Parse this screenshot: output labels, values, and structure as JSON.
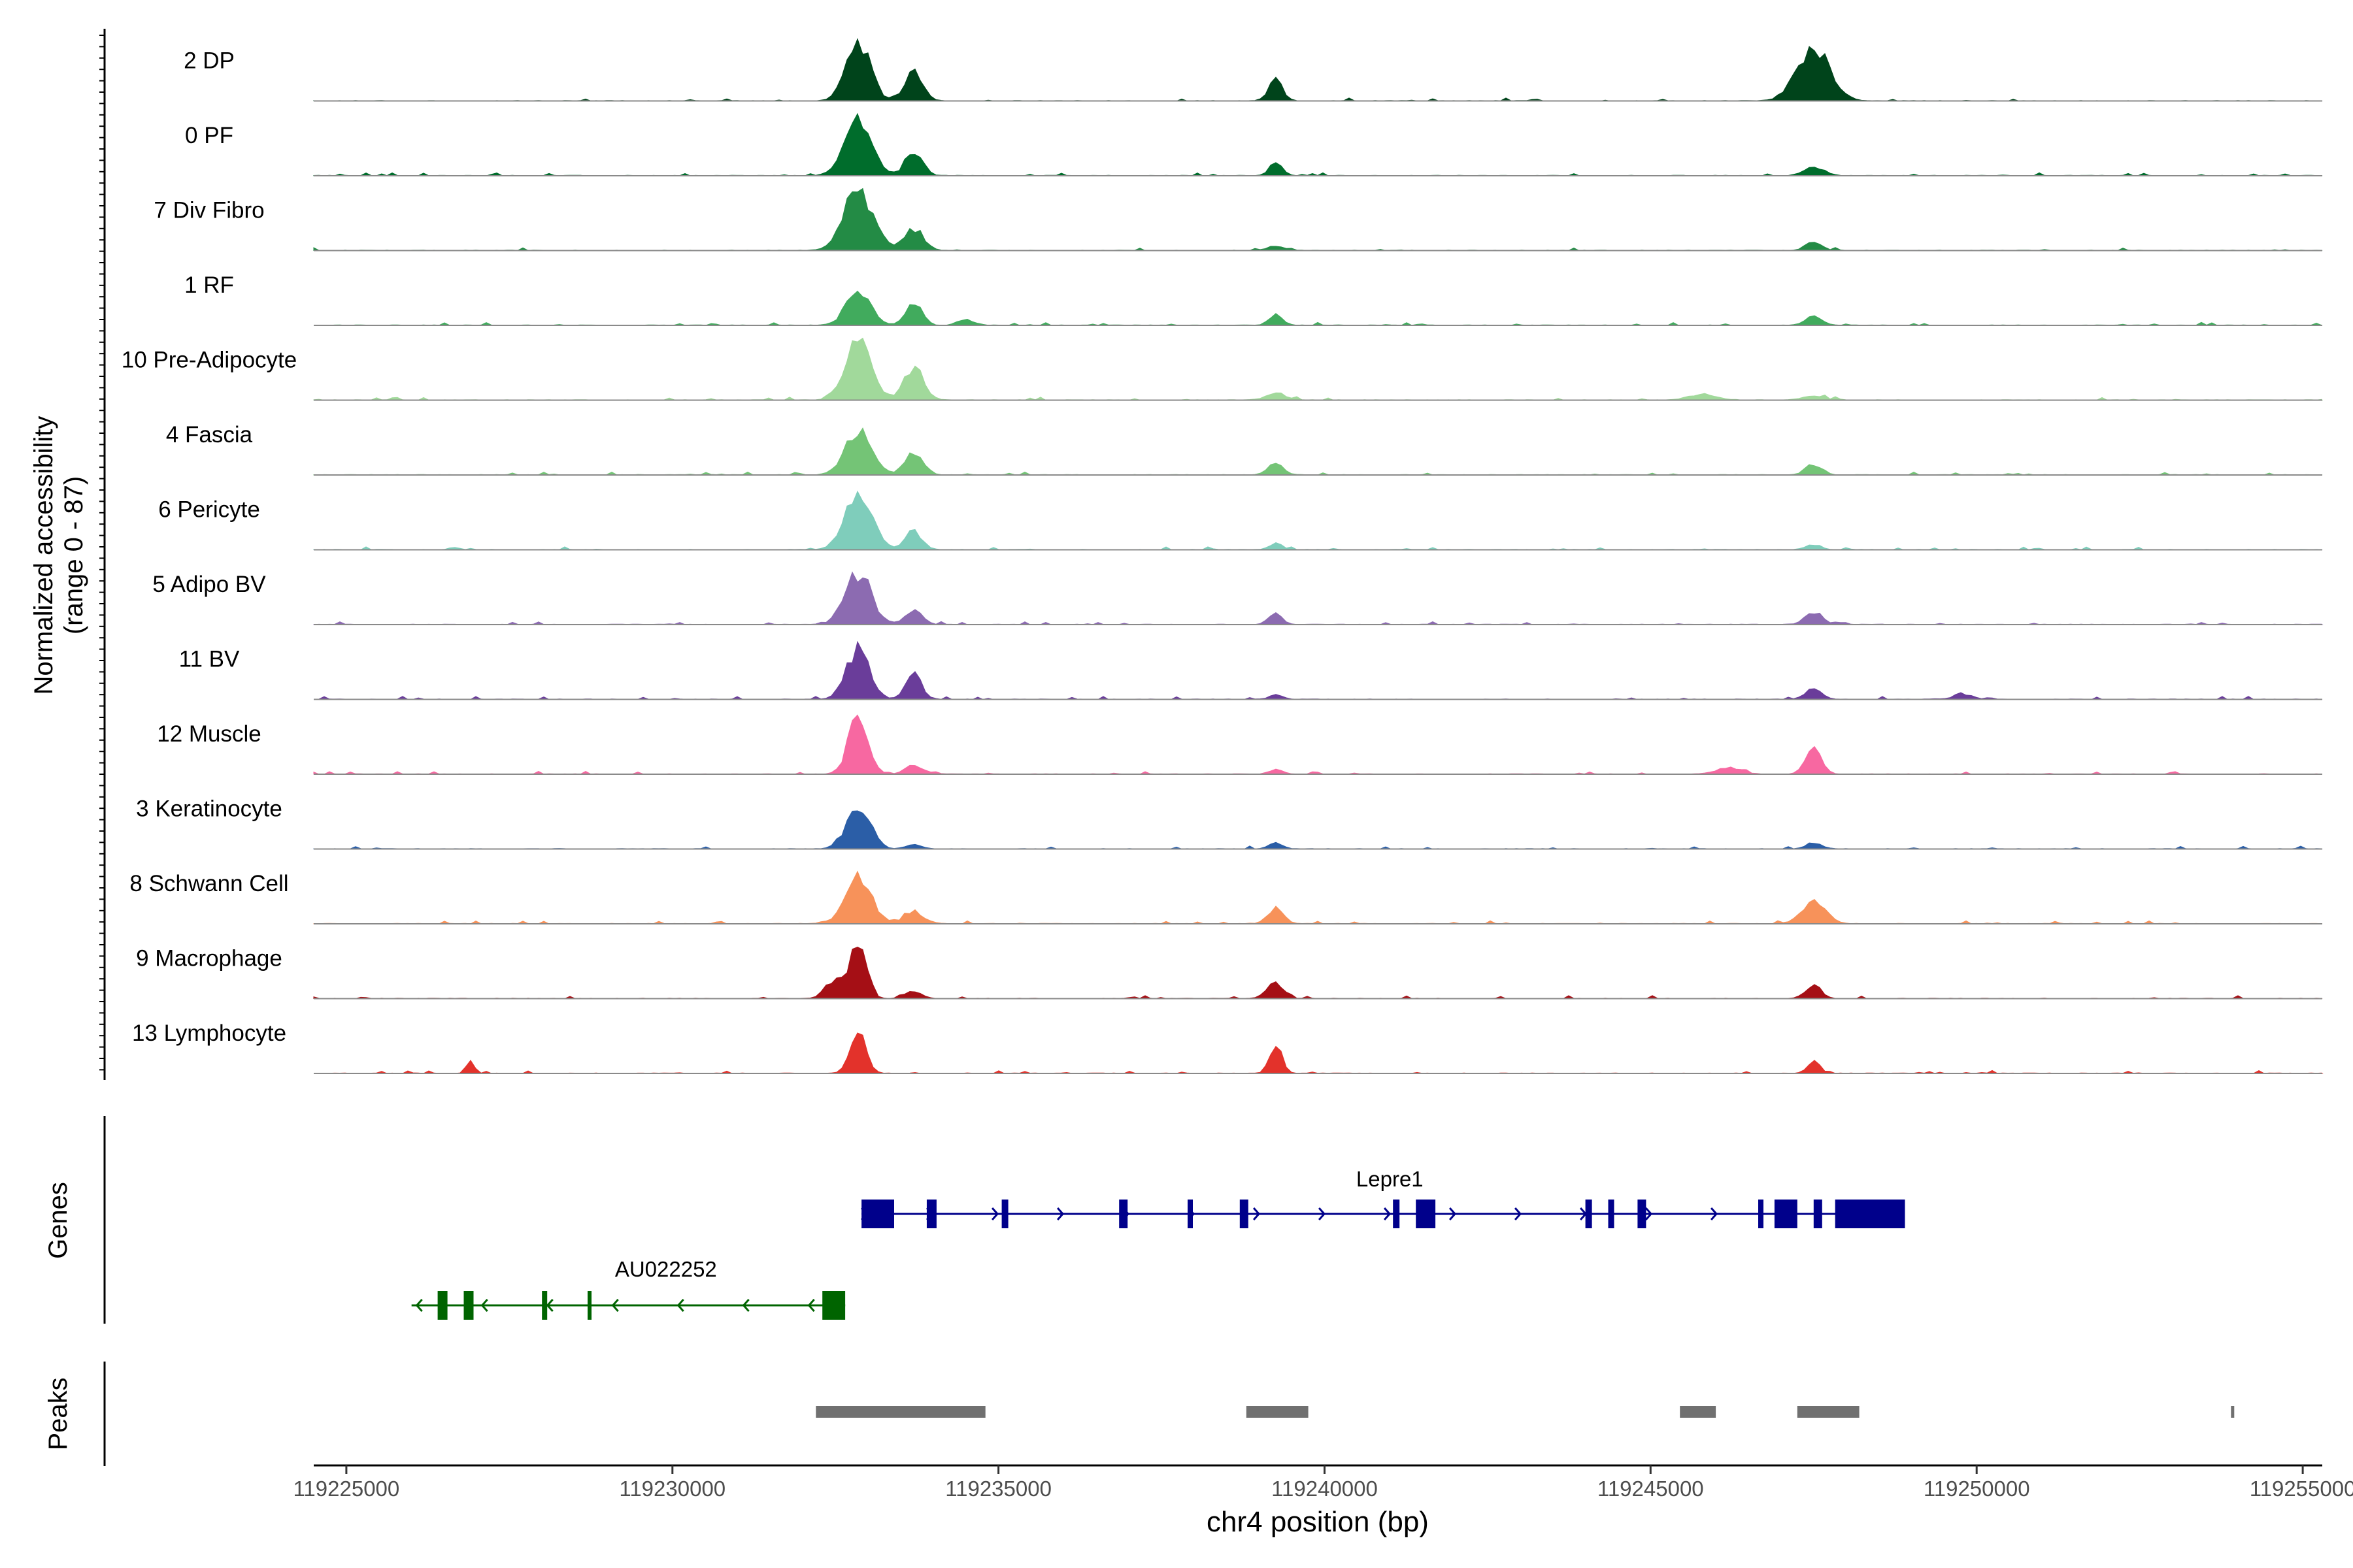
{
  "chart_data": {
    "type": "area",
    "y_axis_title_line1": "Normalized accessibility",
    "y_axis_title_line2": "(range 0 - 87)",
    "y_range": [
      0,
      87
    ],
    "x_axis_title": "chr4 position (bp)",
    "x_range": [
      119224500,
      119255300
    ],
    "x_ticks": [
      {
        "value": 119225000,
        "label": "119225000"
      },
      {
        "value": 119230000,
        "label": "119230000"
      },
      {
        "value": 119235000,
        "label": "119235000"
      },
      {
        "value": 119240000,
        "label": "119240000"
      },
      {
        "value": 119245000,
        "label": "119245000"
      },
      {
        "value": 119250000,
        "label": "119250000"
      },
      {
        "value": 119255000,
        "label": "119255000"
      }
    ],
    "tracks": [
      {
        "name": "2 DP",
        "color": "#00441b",
        "scale": 0.95,
        "peaks": [
          [
            119232850,
            1.0,
            180
          ],
          [
            119233700,
            0.45,
            140
          ],
          [
            119239250,
            0.32,
            110
          ],
          [
            119247500,
            0.9,
            250
          ]
        ]
      },
      {
        "name": "0 PF",
        "color": "#006d2c",
        "scale": 0.95,
        "peaks": [
          [
            119232850,
            1.0,
            200
          ],
          [
            119233700,
            0.4,
            130
          ],
          [
            119239250,
            0.2,
            100
          ],
          [
            119247500,
            0.15,
            150
          ]
        ]
      },
      {
        "name": "7 Div Fibro",
        "color": "#238b45",
        "scale": 0.95,
        "peaks": [
          [
            119232850,
            1.0,
            220
          ],
          [
            119233700,
            0.35,
            150
          ],
          [
            119239250,
            0.08,
            120
          ],
          [
            119247500,
            0.15,
            120
          ]
        ]
      },
      {
        "name": "1 RF",
        "color": "#41ab5d",
        "scale": 0.95,
        "peaks": [
          [
            119232850,
            0.6,
            180
          ],
          [
            119233700,
            0.4,
            120
          ],
          [
            119234500,
            0.1,
            120
          ],
          [
            119239250,
            0.18,
            100
          ],
          [
            119247500,
            0.16,
            120
          ]
        ]
      },
      {
        "name": "10 Pre-Adipocyte",
        "color": "#a1d99b",
        "scale": 0.95,
        "peaks": [
          [
            119232850,
            1.0,
            200
          ],
          [
            119233700,
            0.55,
            150
          ],
          [
            119239250,
            0.12,
            150
          ],
          [
            119245800,
            0.1,
            200
          ],
          [
            119247500,
            0.08,
            150
          ]
        ]
      },
      {
        "name": "4 Fascia",
        "color": "#74c476",
        "scale": 0.95,
        "peaks": [
          [
            119232850,
            0.7,
            200
          ],
          [
            119233700,
            0.35,
            140
          ],
          [
            119239250,
            0.18,
            120
          ],
          [
            119247500,
            0.16,
            130
          ]
        ]
      },
      {
        "name": "6 Pericyte",
        "color": "#7fcdbb",
        "scale": 0.95,
        "peaks": [
          [
            119232850,
            1.0,
            200
          ],
          [
            119233700,
            0.3,
            130
          ],
          [
            119239250,
            0.1,
            100
          ],
          [
            119247500,
            0.08,
            120
          ]
        ]
      },
      {
        "name": "5 Adipo BV",
        "color": "#8c6bb1",
        "scale": 0.95,
        "peaks": [
          [
            119232850,
            0.85,
            200
          ],
          [
            119233700,
            0.25,
            130
          ],
          [
            119239250,
            0.2,
            100
          ],
          [
            119247500,
            0.2,
            130
          ]
        ]
      },
      {
        "name": "11 BV",
        "color": "#6a3d9a",
        "scale": 0.95,
        "peaks": [
          [
            119232850,
            0.8,
            180
          ],
          [
            119233700,
            0.45,
            120
          ],
          [
            119239250,
            0.08,
            100
          ],
          [
            119247500,
            0.2,
            120
          ],
          [
            119249800,
            0.08,
            150
          ]
        ]
      },
      {
        "name": "12 Muscle",
        "color": "#f768a1",
        "scale": 0.95,
        "peaks": [
          [
            119232850,
            0.95,
            150
          ],
          [
            119233700,
            0.15,
            130
          ],
          [
            119239250,
            0.08,
            100
          ],
          [
            119246200,
            0.1,
            200
          ],
          [
            119247500,
            0.4,
            120
          ]
        ]
      },
      {
        "name": "3 Keratinocyte",
        "color": "#2b5ea7",
        "scale": 0.95,
        "peaks": [
          [
            119232850,
            0.7,
            180
          ],
          [
            119233700,
            0.08,
            120
          ],
          [
            119239250,
            0.12,
            100
          ],
          [
            119247500,
            0.1,
            120
          ]
        ]
      },
      {
        "name": "8 Schwann Cell",
        "color": "#f7925a",
        "scale": 0.95,
        "peaks": [
          [
            119232850,
            0.75,
            200
          ],
          [
            119233700,
            0.2,
            150
          ],
          [
            119239250,
            0.25,
            120
          ],
          [
            119247500,
            0.35,
            180
          ]
        ]
      },
      {
        "name": "9 Macrophage",
        "color": "#a50f15",
        "scale": 0.95,
        "peaks": [
          [
            119232850,
            1.0,
            120
          ],
          [
            119232500,
            0.3,
            150
          ],
          [
            119233700,
            0.12,
            120
          ],
          [
            119239250,
            0.25,
            130
          ],
          [
            119247500,
            0.2,
            120
          ]
        ]
      },
      {
        "name": "13 Lymphocyte",
        "color": "#e3322b",
        "scale": 0.95,
        "peaks": [
          [
            119226900,
            0.2,
            60
          ],
          [
            119232850,
            0.7,
            120
          ],
          [
            119239250,
            0.5,
            90
          ],
          [
            119247500,
            0.2,
            90
          ]
        ]
      }
    ],
    "genes_label": "Genes",
    "genes": [
      {
        "name": "Lepre1",
        "strand": "+",
        "color": "#00008b",
        "start": 119232900,
        "end": 119248900,
        "exons": [
          [
            119232900,
            119233400
          ],
          [
            119233900,
            119234050
          ],
          [
            119235050,
            119235150
          ],
          [
            119236850,
            119236980
          ],
          [
            119237900,
            119237980
          ],
          [
            119238700,
            119238830
          ],
          [
            119241050,
            119241150
          ],
          [
            119241400,
            119241700
          ],
          [
            119244000,
            119244100
          ],
          [
            119244350,
            119244440
          ],
          [
            119244800,
            119244930
          ],
          [
            119246650,
            119246730
          ],
          [
            119246900,
            119247250
          ],
          [
            119247500,
            119247630
          ],
          [
            119247830,
            119248900
          ]
        ]
      },
      {
        "name": "AU022252",
        "strand": "-",
        "color": "#006400",
        "start": 119226000,
        "end": 119232650,
        "exons": [
          [
            119226400,
            119226550
          ],
          [
            119226800,
            119226950
          ],
          [
            119228000,
            119228080
          ],
          [
            119228700,
            119228760
          ],
          [
            119232300,
            119232650
          ]
        ]
      }
    ],
    "peaks_label": "Peaks",
    "peak_regions": [
      [
        119232200,
        119234800
      ],
      [
        119238800,
        119239750
      ],
      [
        119245450,
        119246000
      ],
      [
        119247250,
        119248200
      ],
      [
        119253900,
        119253950
      ]
    ],
    "peak_color": "#707070"
  }
}
